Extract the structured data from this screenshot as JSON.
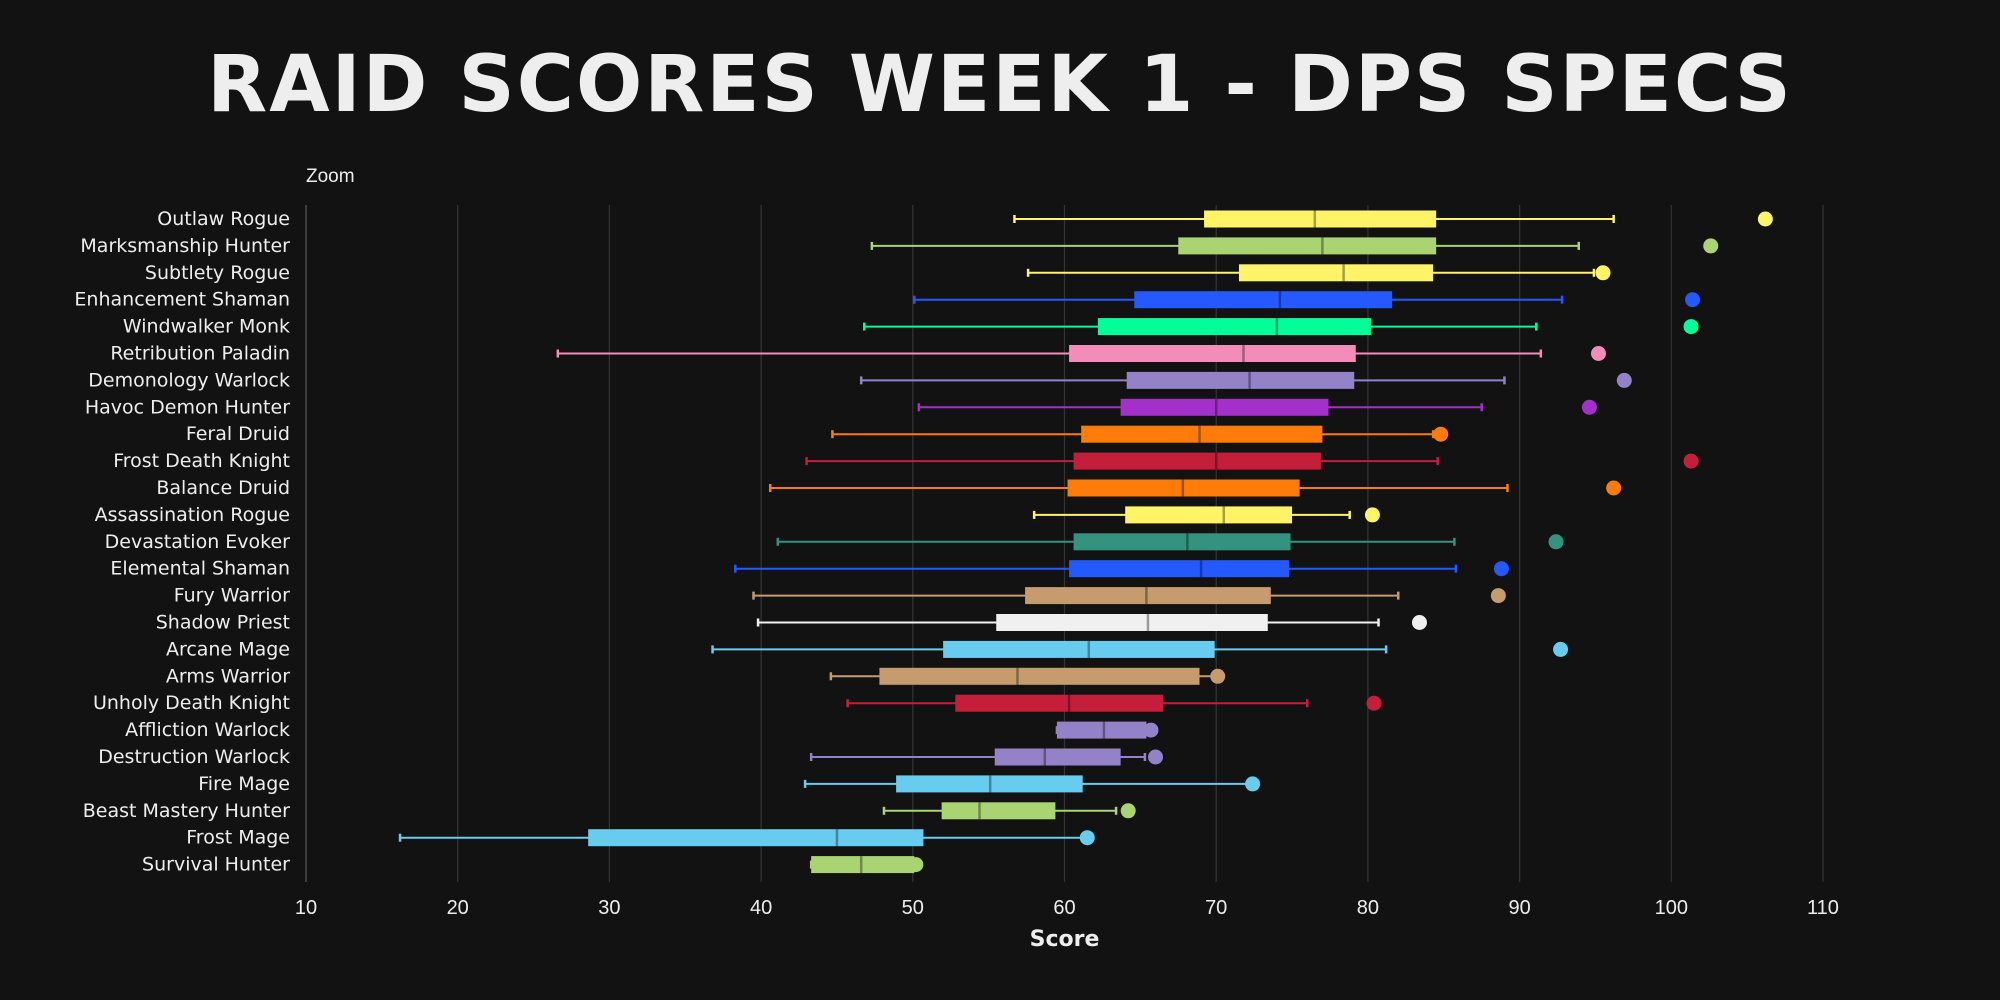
{
  "chart_data": {
    "type": "boxplot",
    "orientation": "horizontal",
    "title": "RAID SCORES WEEK 1 - DPS SPECS",
    "zoom_label": "Zoom",
    "xlabel": "Score",
    "xlim": [
      10,
      110
    ],
    "xticks": [
      10,
      20,
      30,
      40,
      50,
      60,
      70,
      80,
      90,
      100,
      110
    ],
    "grid": true,
    "series": [
      {
        "name": "Outlaw Rogue",
        "color": "#fff468",
        "min": 56.7,
        "q1": 69.2,
        "median": 76.5,
        "q3": 84.5,
        "max": 96.2,
        "outliers": [
          106.2
        ]
      },
      {
        "name": "Marksmanship Hunter",
        "color": "#aad372",
        "min": 47.3,
        "q1": 67.5,
        "median": 77.0,
        "q3": 84.5,
        "max": 93.9,
        "outliers": [
          102.6
        ]
      },
      {
        "name": "Subtlety Rogue",
        "color": "#fff468",
        "min": 57.6,
        "q1": 71.5,
        "median": 78.4,
        "q3": 84.3,
        "max": 94.9,
        "outliers": [
          95.5
        ]
      },
      {
        "name": "Enhancement Shaman",
        "color": "#2459ff",
        "min": 50.1,
        "q1": 64.6,
        "median": 74.2,
        "q3": 81.6,
        "max": 92.8,
        "outliers": [
          101.4
        ]
      },
      {
        "name": "Windwalker Monk",
        "color": "#00ff98",
        "min": 46.8,
        "q1": 62.2,
        "median": 74.0,
        "q3": 80.2,
        "max": 91.1,
        "outliers": [
          101.3
        ]
      },
      {
        "name": "Retribution Paladin",
        "color": "#f48cba",
        "min": 26.6,
        "q1": 60.3,
        "median": 71.8,
        "q3": 79.2,
        "max": 91.4,
        "outliers": [
          95.2
        ]
      },
      {
        "name": "Demonology Warlock",
        "color": "#9482c9",
        "min": 46.6,
        "q1": 64.1,
        "median": 72.2,
        "q3": 79.1,
        "max": 89.0,
        "outliers": [
          96.9
        ]
      },
      {
        "name": "Havoc Demon Hunter",
        "color": "#a330c9",
        "min": 50.4,
        "q1": 63.7,
        "median": 70.0,
        "q3": 77.4,
        "max": 87.5,
        "outliers": [
          94.6
        ]
      },
      {
        "name": "Feral Druid",
        "color": "#ff7c0a",
        "min": 44.7,
        "q1": 61.1,
        "median": 68.9,
        "q3": 77.0,
        "max": 84.3,
        "outliers": [
          84.8
        ]
      },
      {
        "name": "Frost Death Knight",
        "color": "#c41e3a",
        "min": 43.0,
        "q1": 60.6,
        "median": 70.0,
        "q3": 76.9,
        "max": 84.6,
        "outliers": [
          101.3
        ]
      },
      {
        "name": "Balance Druid",
        "color": "#ff7c0a",
        "min": 40.6,
        "q1": 60.2,
        "median": 67.8,
        "q3": 75.5,
        "max": 89.2,
        "outliers": [
          96.2
        ]
      },
      {
        "name": "Assassination Rogue",
        "color": "#fff468",
        "min": 58.0,
        "q1": 64.0,
        "median": 70.5,
        "q3": 75.0,
        "max": 78.8,
        "outliers": [
          80.3
        ]
      },
      {
        "name": "Devastation Evoker",
        "color": "#33937f",
        "min": 41.1,
        "q1": 60.6,
        "median": 68.1,
        "q3": 74.9,
        "max": 85.7,
        "outliers": [
          92.4
        ]
      },
      {
        "name": "Elemental Shaman",
        "color": "#2459ff",
        "min": 38.3,
        "q1": 60.3,
        "median": 69.0,
        "q3": 74.8,
        "max": 85.8,
        "outliers": [
          88.8
        ]
      },
      {
        "name": "Fury Warrior",
        "color": "#c69b6d",
        "min": 39.5,
        "q1": 57.4,
        "median": 65.4,
        "q3": 73.6,
        "max": 82.0,
        "outliers": [
          88.6
        ]
      },
      {
        "name": "Shadow Priest",
        "color": "#f0f0f0",
        "min": 39.8,
        "q1": 55.5,
        "median": 65.5,
        "q3": 73.4,
        "max": 80.7,
        "outliers": [
          83.4
        ]
      },
      {
        "name": "Arcane Mage",
        "color": "#68ccef",
        "min": 36.8,
        "q1": 52.0,
        "median": 61.6,
        "q3": 69.9,
        "max": 81.2,
        "outliers": [
          92.7
        ]
      },
      {
        "name": "Arms Warrior",
        "color": "#c69b6d",
        "min": 44.6,
        "q1": 47.8,
        "median": 56.9,
        "q3": 68.9,
        "max": 69.9,
        "outliers": [
          70.1
        ]
      },
      {
        "name": "Unholy Death Knight",
        "color": "#c41e3a",
        "min": 45.7,
        "q1": 52.8,
        "median": 60.3,
        "q3": 66.5,
        "max": 76.0,
        "outliers": [
          80.4
        ]
      },
      {
        "name": "Affliction Warlock",
        "color": "#9482c9",
        "min": 59.5,
        "q1": 59.5,
        "median": 62.6,
        "q3": 65.4,
        "max": 65.4,
        "outliers": [
          65.7
        ]
      },
      {
        "name": "Destruction Warlock",
        "color": "#9482c9",
        "min": 43.3,
        "q1": 55.4,
        "median": 58.7,
        "q3": 63.7,
        "max": 65.3,
        "outliers": [
          66.0
        ]
      },
      {
        "name": "Fire Mage",
        "color": "#68ccef",
        "min": 42.9,
        "q1": 48.9,
        "median": 55.1,
        "q3": 61.2,
        "max": 72.3,
        "outliers": [
          72.4
        ]
      },
      {
        "name": "Beast Mastery Hunter",
        "color": "#aad372",
        "min": 48.1,
        "q1": 51.9,
        "median": 54.4,
        "q3": 59.4,
        "max": 63.4,
        "outliers": [
          64.2
        ]
      },
      {
        "name": "Frost Mage",
        "color": "#68ccef",
        "min": 16.2,
        "q1": 28.6,
        "median": 45.0,
        "q3": 50.7,
        "max": 61.4,
        "outliers": [
          61.5
        ]
      },
      {
        "name": "Survival Hunter",
        "color": "#aad372",
        "min": 43.3,
        "q1": 43.3,
        "median": 46.6,
        "q3": 50.1,
        "max": 50.1,
        "outliers": [
          50.2
        ]
      }
    ]
  }
}
